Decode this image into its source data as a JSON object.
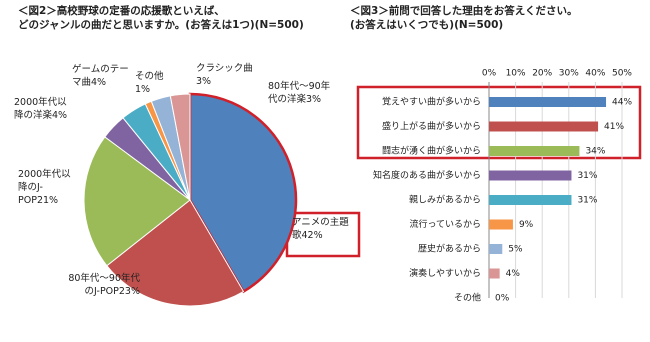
{
  "chart_data": [
    {
      "type": "pie",
      "title": [
        "＜図2＞高校野球の定番の応援歌といえば、",
        "どのジャンルの曲だと思いますか。(お答えは1つ)(N=500)"
      ],
      "categories": [
        "アニメの主題歌",
        "80年代～90年代のJ-POP",
        "2000年代以降のJ-POP",
        "2000年代以降の洋楽",
        "ゲームのテーマ曲",
        "その他",
        "クラシック曲",
        "80年代～90年代の洋楽"
      ],
      "values": [
        42,
        23,
        21,
        4,
        4,
        1,
        3,
        3
      ],
      "value_labels": [
        "42%",
        "23%",
        "21%",
        "4%",
        "4%",
        "1%",
        "3%",
        "3%"
      ],
      "colors": [
        "#4f81bd",
        "#c0504d",
        "#9bbb59",
        "#8064a2",
        "#4bacc6",
        "#f79646",
        "#95b3d7",
        "#d99694"
      ]
    },
    {
      "type": "hbar",
      "title": [
        "＜図3＞前問で回答した理由をお答えください。",
        "(お答えはいくつでも)(N=500)"
      ],
      "categories": [
        "覚えやすい曲が多いから",
        "盛り上がる曲が多いから",
        "闘志が湧く曲が多いから",
        "知名度のある曲が多いから",
        "親しみがあるから",
        "流行っているから",
        "歴史があるから",
        "演奏しやすいから",
        "その他"
      ],
      "values": [
        44,
        41,
        34,
        31,
        31,
        9,
        5,
        4,
        0
      ],
      "value_labels": [
        "44%",
        "41%",
        "34%",
        "31%",
        "31%",
        "9%",
        "5%",
        "4%",
        "0%"
      ],
      "colors": [
        "#4f81bd",
        "#c0504d",
        "#9bbb59",
        "#8064a2",
        "#4bacc6",
        "#f79646",
        "#95b3d7",
        "#d99694",
        "#cccccc"
      ],
      "xlim": [
        0,
        50
      ],
      "xticks": [
        {
          "value": 0,
          "label": "0%"
        },
        {
          "value": 10,
          "label": "10%"
        },
        {
          "value": 20,
          "label": "20%"
        },
        {
          "value": 30,
          "label": "30%"
        },
        {
          "value": 40,
          "label": "40%"
        },
        {
          "value": 50,
          "label": "50%"
        }
      ],
      "grid": true
    }
  ]
}
